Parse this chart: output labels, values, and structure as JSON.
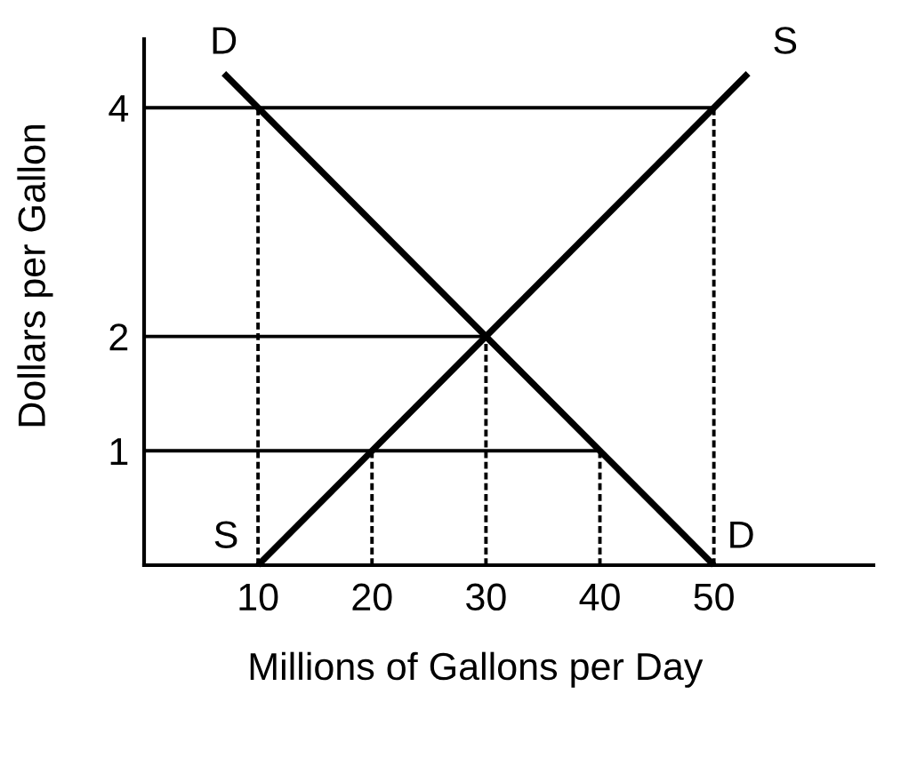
{
  "chart_data": {
    "type": "line",
    "xlabel": "Millions of Gallons per Day",
    "ylabel": "Dollars per Gallon",
    "xlim": [
      0,
      64
    ],
    "ylim": [
      0,
      4.6
    ],
    "xticks": [
      10,
      20,
      30,
      40,
      50
    ],
    "yticks": [
      1,
      2,
      4
    ],
    "grid": false,
    "legend": false,
    "marker": "none",
    "series": [
      {
        "name": "D",
        "color": "#000000",
        "x": [
          7,
          50
        ],
        "values": [
          4.3,
          0
        ]
      },
      {
        "name": "S",
        "color": "#000000",
        "x": [
          10,
          53
        ],
        "values": [
          0,
          4.3
        ]
      },
      {
        "color": "#000000",
        "x": [
          0,
          50
        ],
        "values": [
          4,
          4
        ]
      },
      {
        "color": "#000000",
        "x": [
          0,
          30
        ],
        "values": [
          2,
          2
        ]
      },
      {
        "color": "#000000",
        "x": [
          0,
          40
        ],
        "values": [
          1,
          1
        ]
      },
      {
        "color": "#000000",
        "x": [
          10,
          10
        ],
        "values": [
          0,
          4
        ],
        "line_style": "dashed"
      },
      {
        "color": "#000000",
        "x": [
          20,
          20
        ],
        "values": [
          0,
          1
        ],
        "line_style": "dashed"
      },
      {
        "color": "#000000",
        "x": [
          30,
          30
        ],
        "values": [
          0,
          2
        ],
        "line_style": "dashed"
      },
      {
        "color": "#000000",
        "x": [
          40,
          40
        ],
        "values": [
          0,
          1
        ],
        "line_style": "dashed"
      },
      {
        "color": "#000000",
        "x": [
          50,
          50
        ],
        "values": [
          0,
          4
        ],
        "line_style": "dashed"
      }
    ]
  }
}
